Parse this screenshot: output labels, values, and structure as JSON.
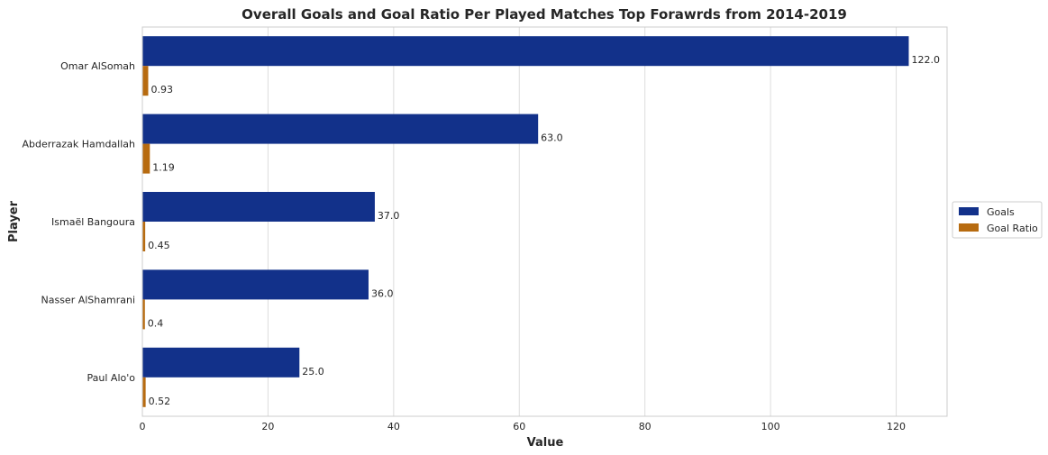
{
  "chart_data": {
    "type": "bar",
    "orientation": "horizontal",
    "title": "Overall Goals and Goal Ratio Per Played Matches Top Forawrds from 2014-2019",
    "xlabel": "Value",
    "ylabel": "Player",
    "categories": [
      "Omar AlSomah",
      "Abderrazak Hamdallah",
      "Ismaël Bangoura",
      "Nasser AlShamrani",
      "Paul Alo'o"
    ],
    "series": [
      {
        "name": "Goals",
        "color": "#12318a",
        "values": [
          122.0,
          63.0,
          37.0,
          36.0,
          25.0
        ],
        "labels": [
          "122.0",
          "63.0",
          "37.0",
          "36.0",
          "25.0"
        ]
      },
      {
        "name": "Goal Ratio",
        "color": "#b76b10",
        "values": [
          0.93,
          1.19,
          0.45,
          0.4,
          0.52
        ],
        "labels": [
          "0.93",
          "1.19",
          "0.45",
          "0.4",
          "0.52"
        ]
      }
    ],
    "xlim": [
      0,
      128.1
    ],
    "xticks": [
      0,
      20,
      40,
      60,
      80,
      100,
      120
    ],
    "grid": "vertical",
    "legend_position": "right"
  },
  "colors": {
    "grid": "#dddddd",
    "frame": "#cccccc"
  }
}
